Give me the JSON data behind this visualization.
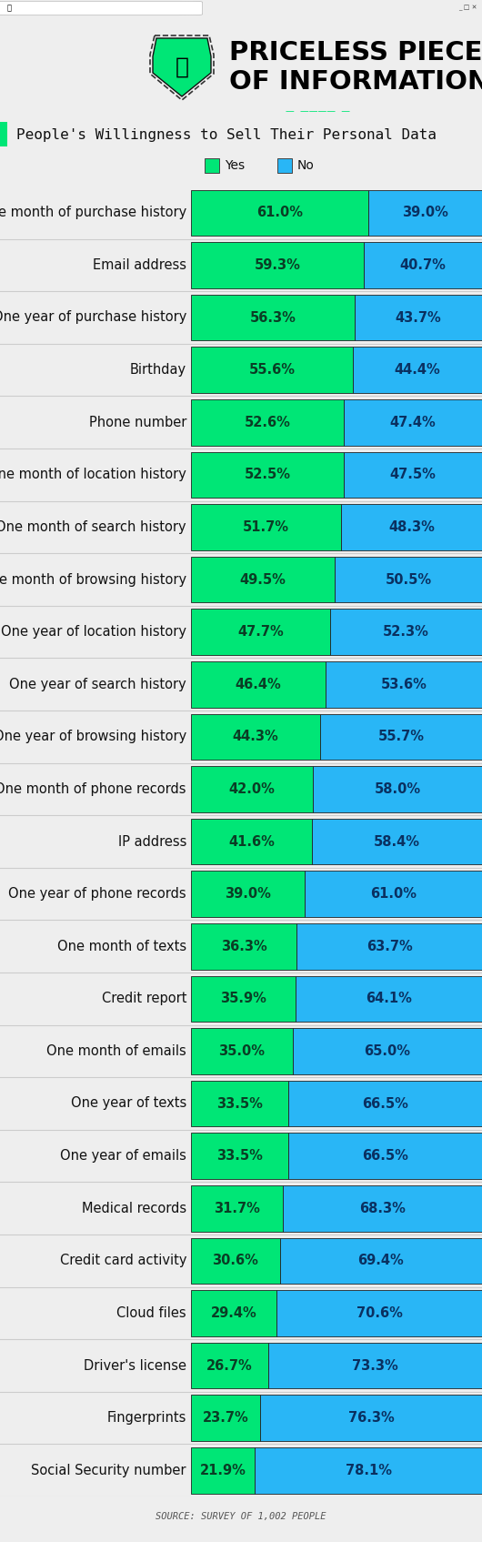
{
  "title_line1": "PRICELESS PIECES",
  "title_line2": "OF INFORMATION",
  "subtitle": "People's Willingness to Sell Their Personal Data",
  "source": "SOURCE: SURVEY OF 1,002 PEOPLE",
  "categories": [
    "One month of purchase history",
    "Email address",
    "One year of purchase history",
    "Birthday",
    "Phone number",
    "One month of location history",
    "One month of search history",
    "One month of browsing history",
    "One year of location history",
    "One year of search history",
    "One year of browsing history",
    "One month of phone records",
    "IP address",
    "One year of phone records",
    "One month of texts",
    "Credit report",
    "One month of emails",
    "One year of texts",
    "One year of emails",
    "Medical records",
    "Credit card activity",
    "Cloud files",
    "Driver's license",
    "Fingerprints",
    "Social Security number"
  ],
  "yes_values": [
    61.0,
    59.3,
    56.3,
    55.6,
    52.6,
    52.5,
    51.7,
    49.5,
    47.7,
    46.4,
    44.3,
    42.0,
    41.6,
    39.0,
    36.3,
    35.9,
    35.0,
    33.5,
    33.5,
    31.7,
    30.6,
    29.4,
    26.7,
    23.7,
    21.9
  ],
  "no_values": [
    39.0,
    40.7,
    43.7,
    44.4,
    47.4,
    47.5,
    48.3,
    50.5,
    52.3,
    53.6,
    55.7,
    58.0,
    58.4,
    61.0,
    63.7,
    64.1,
    65.0,
    66.5,
    66.5,
    68.3,
    69.4,
    70.6,
    73.3,
    76.3,
    78.1
  ],
  "yes_color": "#00e676",
  "no_color": "#29b6f6",
  "bg_color": "#eeeeee",
  "chart_bg": "#ffffff",
  "accent_color": "#00e676",
  "bar_text_fontsize": 10.5,
  "label_fontsize": 10.5,
  "fig_width": 5.3,
  "fig_height": 16.95
}
